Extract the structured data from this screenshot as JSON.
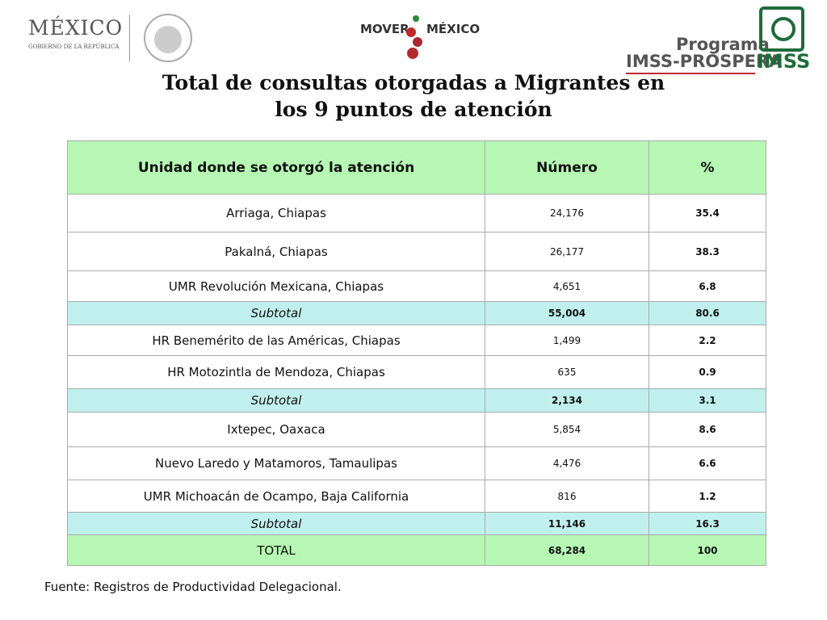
{
  "header": {
    "left_logo": {
      "name": "MÉXICO",
      "subtitle": "GOBIERNO DE LA REPÚBLICA"
    },
    "center_logo": {
      "left": "MOVER",
      "right": "MÉXICO"
    },
    "right_logo": {
      "line1": "Programa",
      "line2": "IMSS-PROSPERA",
      "brand": "IMSS"
    }
  },
  "title": [
    "Total de consultas otorgadas a Migrantes en",
    "los 9 puntos de atención"
  ],
  "table": {
    "columns": [
      "Unidad donde se otorgó la atención",
      "Número",
      "%"
    ],
    "rows": [
      [
        "Arriaga, Chiapas",
        "24,176",
        "35.4"
      ],
      [
        "Pakalná, Chiapas",
        "26,177",
        "38.3"
      ],
      [
        "UMR Revolución Mexicana, Chiapas",
        "4,651",
        "6.8"
      ],
      [
        "Subtotal",
        "55,004",
        "80.6"
      ],
      [
        "HR Benemérito de las Américas, Chiapas",
        "1,499",
        "2.2"
      ],
      [
        "HR Motozintla  de Mendoza, Chiapas",
        "635",
        "0.9"
      ],
      [
        "Subtotal",
        "2,134",
        "3.1"
      ],
      [
        "Ixtepec, Oaxaca",
        "5,854",
        "8.6"
      ],
      [
        "Nuevo Laredo y Matamoros, Tamaulipas",
        "4,476",
        "6.6"
      ],
      [
        "UMR Michoacán de Ocampo, Baja California",
        "816",
        "1.2"
      ],
      [
        "Subtotal",
        "11,146",
        "16.3"
      ],
      [
        "TOTAL",
        "68,284",
        "100"
      ]
    ]
  },
  "footer": "Fuente: Registros de Productividad Delegacional."
}
